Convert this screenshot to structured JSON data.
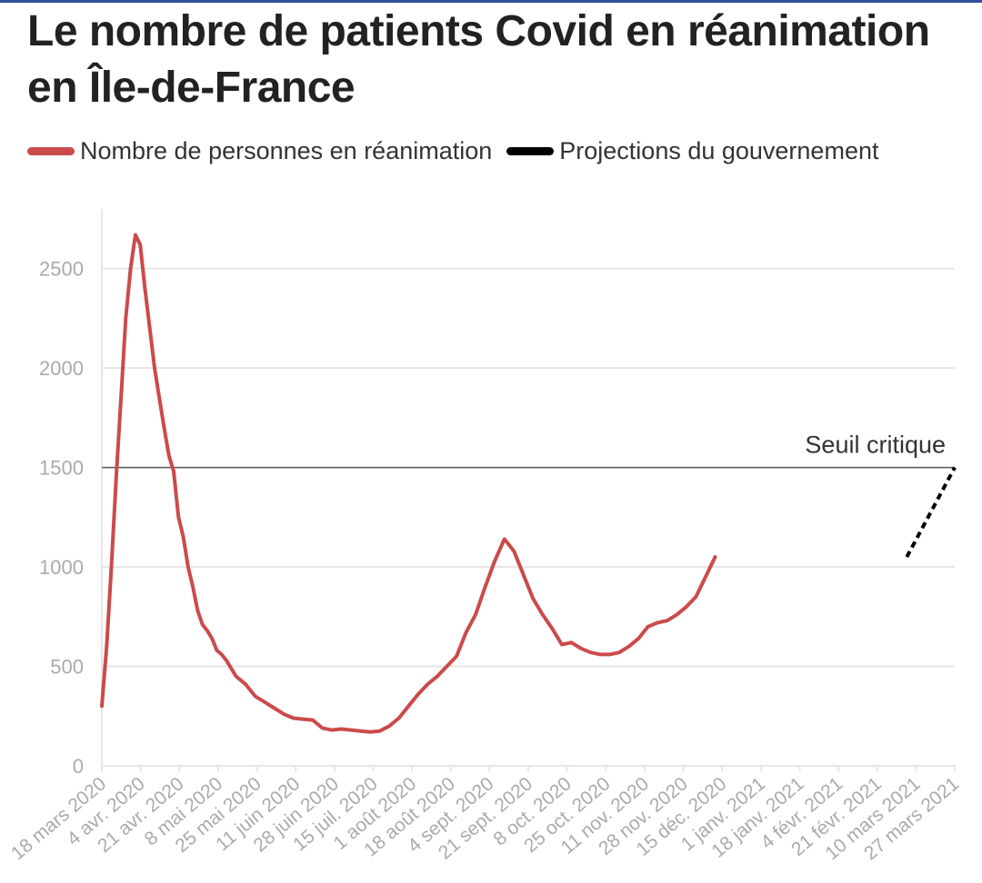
{
  "header": {
    "title": "Le nombre de patients Covid en réanimation en Île-de-France"
  },
  "colors": {
    "series_main": "#cc4a4a",
    "series_projection": "#000000",
    "threshold": "#555555",
    "grid": "#e6e6e6",
    "axis_text": "#aaaaaa"
  },
  "chart_data": {
    "type": "line",
    "title": "Le nombre de patients Covid en réanimation en Île-de-France",
    "xlabel": "",
    "ylabel": "",
    "ylim": [
      0,
      2800
    ],
    "yticks": [
      0,
      500,
      1000,
      1500,
      2000,
      2500
    ],
    "grid": true,
    "legend_position": "top-left",
    "categories": [
      "18 mars 2020",
      "4 avr. 2020",
      "21 avr. 2020",
      "8 mai 2020",
      "25 mai 2020",
      "11 juin 2020",
      "28 juin 2020",
      "15 juil. 2020",
      "1 août 2020",
      "18 août 2020",
      "4 sept. 2020",
      "21 sept. 2020",
      "8 oct. 2020",
      "25 oct. 2020",
      "11 nov. 2020",
      "28 nov. 2020",
      "15 déc. 2020",
      "1 janv. 2021",
      "18 janv. 2021",
      "4 févr. 2021",
      "21 févr. 2021",
      "10 mars 2021",
      "27 mars 2021"
    ],
    "series": [
      {
        "name": "Nombre de personnes en réanimation",
        "style": "solid",
        "x": [
          0,
          2,
          4,
          6,
          8,
          10,
          12,
          14,
          16,
          18,
          20,
          22,
          24,
          26,
          28,
          30,
          32,
          34,
          36,
          38,
          40,
          42,
          44,
          46,
          48,
          50,
          52,
          56,
          60,
          64,
          68,
          72,
          76,
          80,
          84,
          88,
          92,
          96,
          100,
          104,
          108,
          112,
          116,
          120,
          124,
          128,
          132,
          136,
          140,
          144,
          148,
          152,
          156,
          160,
          164,
          168,
          172,
          176,
          180,
          184,
          188,
          192,
          196,
          200,
          204,
          208,
          212,
          216,
          220,
          224,
          228,
          232,
          236,
          240,
          244,
          248,
          252,
          256,
          260,
          264,
          268,
          272,
          276,
          280,
          284,
          288,
          292,
          296,
          300,
          304,
          308,
          312,
          316,
          320,
          324,
          328,
          332,
          336,
          340,
          344,
          348,
          352,
          356
        ],
        "y": [
          300,
          600,
          1000,
          1450,
          1850,
          2250,
          2500,
          2670,
          2620,
          2400,
          2200,
          2000,
          1850,
          1700,
          1560,
          1480,
          1250,
          1150,
          1000,
          900,
          780,
          710,
          680,
          640,
          580,
          560,
          530,
          450,
          410,
          350,
          320,
          290,
          260,
          240,
          235,
          230,
          190,
          180,
          185,
          180,
          175,
          170,
          175,
          200,
          240,
          300,
          360,
          410,
          450,
          500,
          550,
          670,
          760,
          900,
          1030,
          1140,
          1080,
          960,
          840,
          760,
          690,
          610,
          620,
          590,
          570,
          560,
          560,
          570,
          600,
          640,
          700,
          720,
          730,
          760,
          800,
          850,
          950,
          1050,
          null,
          null,
          null,
          null,
          null,
          null,
          null,
          null,
          null,
          null,
          null,
          null,
          null,
          null,
          null,
          null,
          null,
          null,
          null,
          null,
          null,
          null,
          null,
          null,
          null
        ]
      },
      {
        "name": "Projections du gouvernement",
        "style": "dashed",
        "x": [
          336,
          356
        ],
        "y": [
          1050,
          1500
        ]
      }
    ],
    "threshold": {
      "value": 1500,
      "label": "Seuil critique"
    }
  }
}
